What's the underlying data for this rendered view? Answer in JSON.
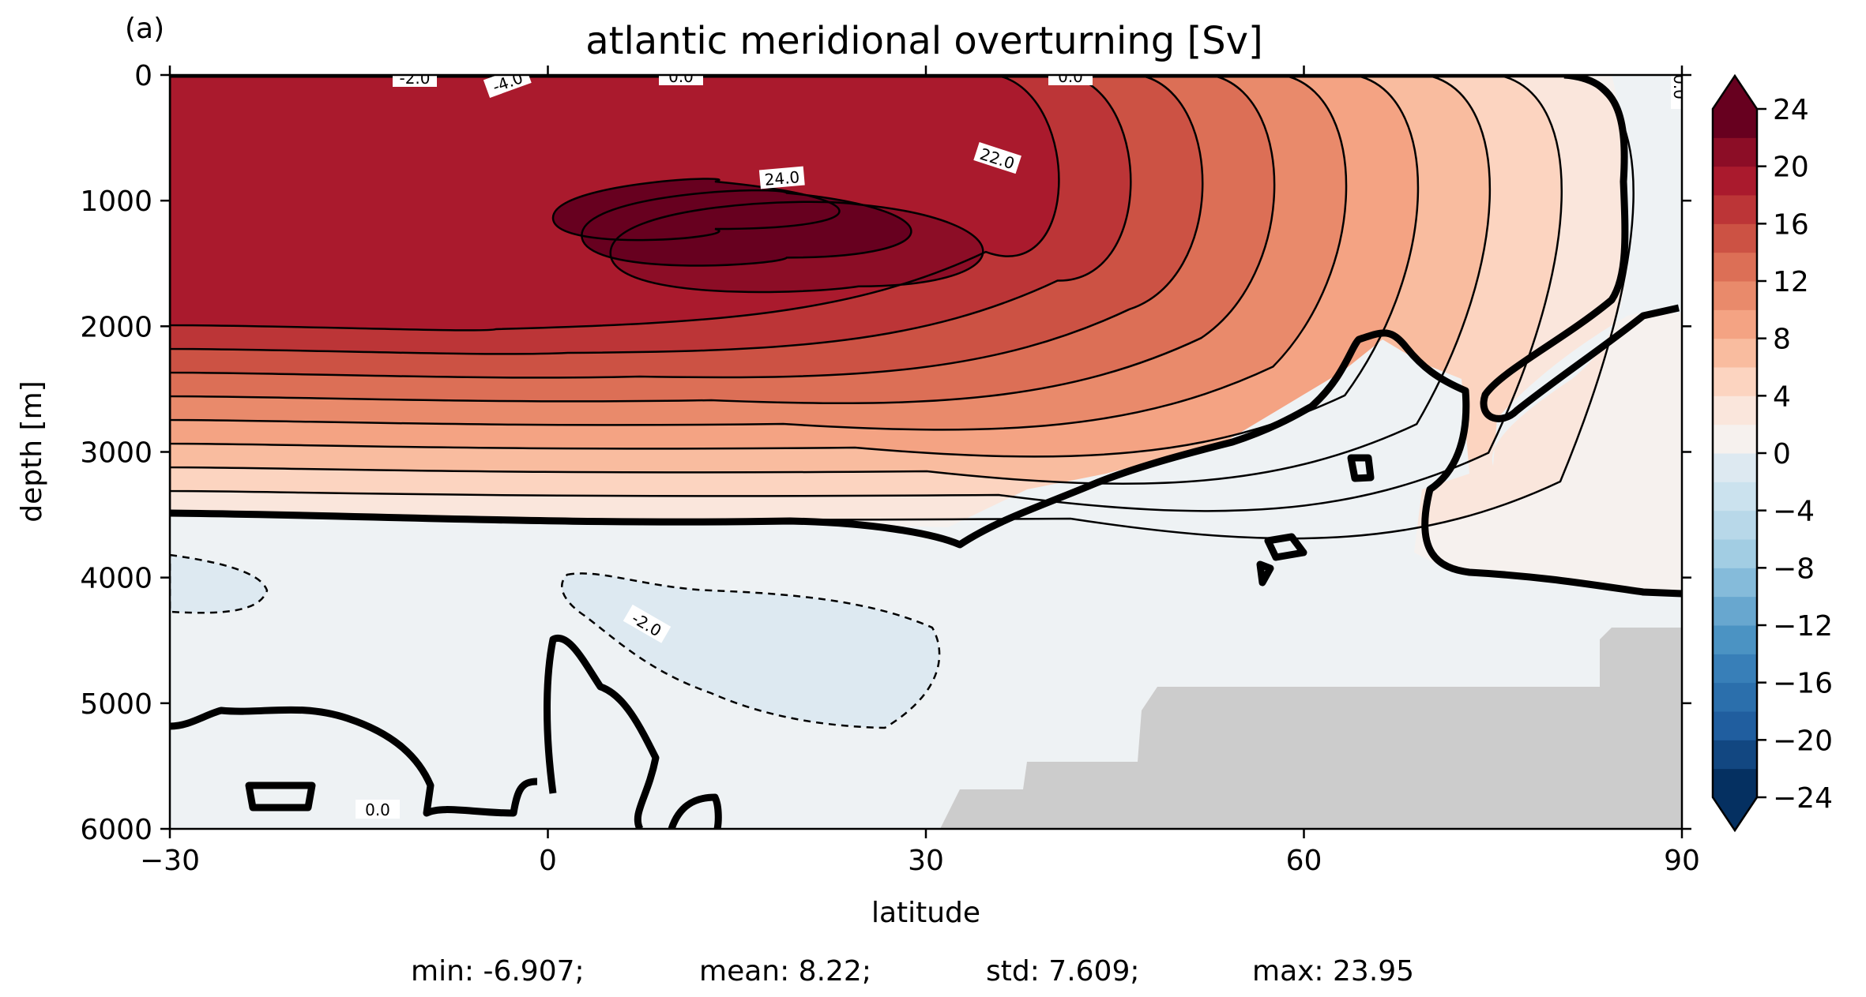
{
  "panel_label": "(a)",
  "stats": {
    "min": "min: -6.907;",
    "mean": "mean: 8.22;",
    "std": "std: 7.609;",
    "max": "max: 23.95"
  },
  "colors": {
    "land_mask": "#cccccc",
    "positive_max": "#67001f",
    "negative_max": "#053061",
    "zero": "#f7f7f7"
  },
  "chart_data": {
    "type": "heatmap",
    "title": "atlantic meridional overturning [Sv]",
    "xlabel": "latitude",
    "ylabel": "depth [m]",
    "xlim": [
      -30,
      90
    ],
    "ylim": [
      6000,
      0
    ],
    "y_inverted": true,
    "x_ticks": [
      -30,
      0,
      30,
      60,
      90
    ],
    "x_tick_labels": [
      "−30",
      "0",
      "30",
      "60",
      "90"
    ],
    "y_ticks": [
      0,
      1000,
      2000,
      3000,
      4000,
      5000,
      6000
    ],
    "y_tick_labels": [
      "0",
      "1000",
      "2000",
      "3000",
      "4000",
      "5000",
      "6000"
    ],
    "colorbar": {
      "orientation": "vertical",
      "placement": "right",
      "levels": [
        -24,
        -22,
        -20,
        -18,
        -16,
        -14,
        -12,
        -10,
        -8,
        -6,
        -4,
        -2,
        0,
        2,
        4,
        6,
        8,
        10,
        12,
        14,
        16,
        18,
        20,
        22,
        24
      ],
      "ticks": [
        24,
        20,
        16,
        12,
        8,
        4,
        0,
        -4,
        -8,
        -12,
        -16,
        -20,
        -24
      ],
      "tick_labels": [
        "24",
        "20",
        "16",
        "12",
        "8",
        "4",
        "0",
        "−4",
        "−8",
        "−12",
        "−16",
        "−20",
        "−24"
      ],
      "extend": "both",
      "colors_low_to_high": [
        "#053061",
        "#124781",
        "#205e9f",
        "#2b6fac",
        "#387fb8",
        "#4b93c3",
        "#68a7cf",
        "#85bbda",
        "#a2cde3",
        "#b8d8e9",
        "#cbe2ee",
        "#dde9f1",
        "#eef2f4",
        "#f6f1ee",
        "#fae6dc",
        "#fcd4c0",
        "#f9bc9f",
        "#f4a383",
        "#e98a6b",
        "#dc6f56",
        "#cc5244",
        "#bc3537",
        "#aa1a2d",
        "#8c0d26",
        "#67001f"
      ]
    },
    "contour_labels": [
      "-2.0",
      "-4.0",
      "0.0",
      "0.0",
      "0.0",
      "24.0",
      "22.0",
      "-2.0",
      "0.0"
    ],
    "maximum_cell": {
      "value": 23.95,
      "latitude_range": [
        0,
        43
      ],
      "depth_range": [
        750,
        1400
      ]
    },
    "land_mask": "present (grey, lower right)"
  }
}
